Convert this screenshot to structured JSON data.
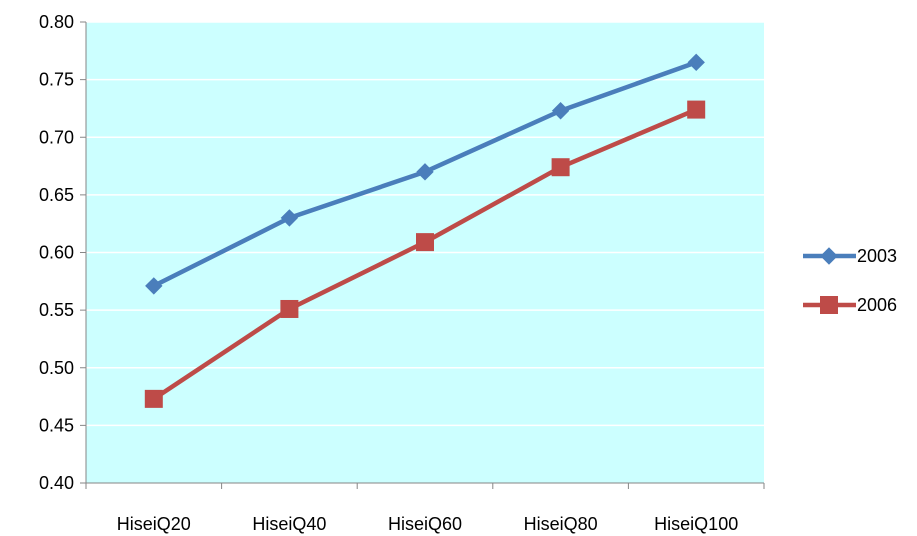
{
  "chart_data": {
    "type": "line",
    "categories": [
      "HiseiQ20",
      "HiseiQ40",
      "HiseiQ60",
      "HiseiQ80",
      "HiseiQ100"
    ],
    "series": [
      {
        "name": "2003",
        "values": [
          0.571,
          0.63,
          0.67,
          0.723,
          0.765
        ],
        "color": "#4a7ebb",
        "marker": "diamond"
      },
      {
        "name": "2006",
        "values": [
          0.473,
          0.551,
          0.609,
          0.674,
          0.724
        ],
        "color": "#be4b48",
        "marker": "square"
      }
    ],
    "ylim": [
      0.4,
      0.8
    ],
    "yticks": [
      "0.40",
      "0.45",
      "0.50",
      "0.55",
      "0.60",
      "0.65",
      "0.70",
      "0.75",
      "0.80"
    ],
    "grid": true,
    "plot_background": "#ccffff",
    "gridline_color": "#ffffff",
    "legend_position": "right"
  }
}
